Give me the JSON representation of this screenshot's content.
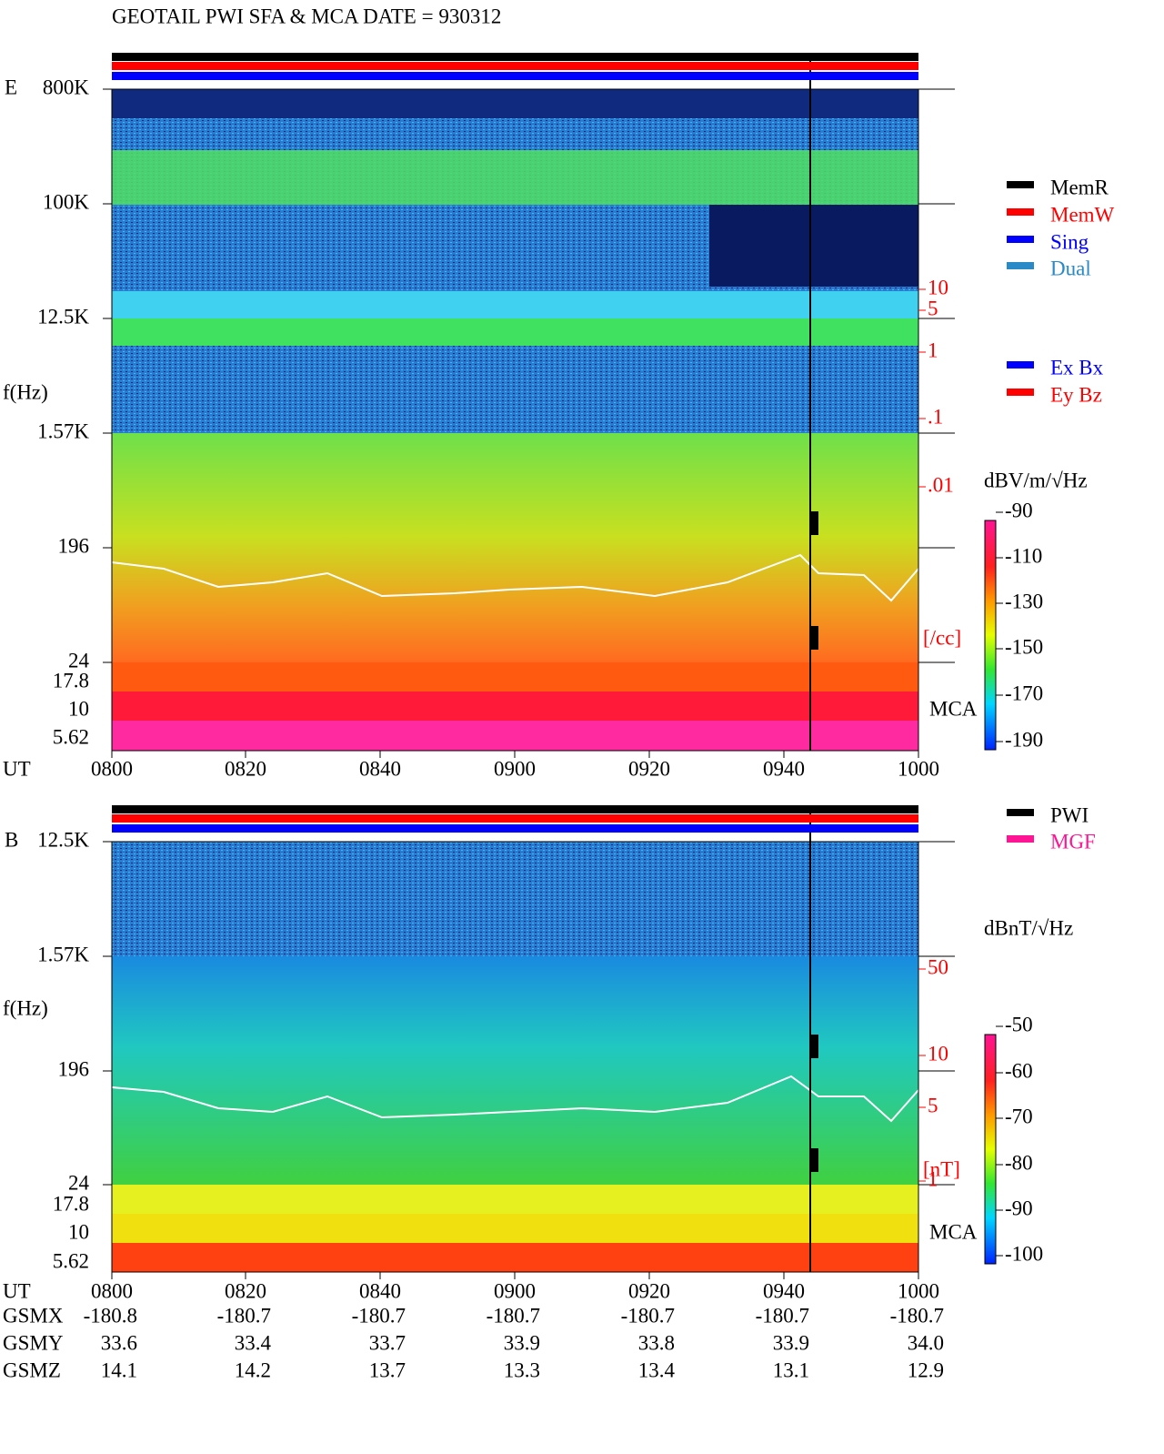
{
  "title": "GEOTAIL  PWI SFA & MCA   DATE = 930312",
  "panels": [
    {
      "label": "E",
      "ylabel": "f(Hz)",
      "yticks": [
        "800K",
        "100K",
        "12.5K",
        "1.57K",
        "196",
        "24",
        "17.8",
        "10",
        "5.62"
      ],
      "right_ticks": [
        "10",
        "5",
        "1",
        ".1",
        ".01"
      ],
      "right_unit": "[/cc]",
      "mca": "MCA",
      "legend": [
        {
          "name": "MemR",
          "color": "#000000"
        },
        {
          "name": "MemW",
          "color": "#ff0000"
        },
        {
          "name": "Sing",
          "color": "#0000ff"
        },
        {
          "name": "Dual",
          "color": "#2a8ac8"
        }
      ],
      "legend2": [
        {
          "name": "Ex Bx",
          "color": "#0000ff"
        },
        {
          "name": "Ey Bz",
          "color": "#ff0000"
        }
      ],
      "colorbar": {
        "unit": "dBV/m/√Hz",
        "ticks": [
          "-90",
          "-110",
          "-130",
          "-150",
          "-170",
          "-190"
        ]
      }
    },
    {
      "label": "B",
      "ylabel": "f(Hz)",
      "yticks": [
        "12.5K",
        "1.57K",
        "196",
        "24",
        "17.8",
        "10",
        "5.62"
      ],
      "right_ticks": [
        "50",
        "10",
        "5",
        "1"
      ],
      "right_unit": "[nT]",
      "mca": "MCA",
      "legend": [
        {
          "name": "PWI",
          "color": "#000000"
        },
        {
          "name": "MGF",
          "color": "#ff1493"
        }
      ],
      "colorbar": {
        "unit": "dBnT/√Hz",
        "ticks": [
          "-50",
          "-60",
          "-70",
          "-80",
          "-90",
          "-100"
        ]
      }
    }
  ],
  "ut_label": "UT",
  "ut_ticks": [
    "0800",
    "0820",
    "0840",
    "0900",
    "0920",
    "0940",
    "1000"
  ],
  "orbit": [
    {
      "name": "GSMX",
      "values": [
        "-180.8",
        "-180.7",
        "-180.7",
        "-180.7",
        "-180.7",
        "-180.7",
        "-180.7"
      ]
    },
    {
      "name": "GSMY",
      "values": [
        "33.6",
        "33.4",
        "33.7",
        "33.9",
        "33.8",
        "33.9",
        "34.0"
      ]
    },
    {
      "name": "GSMZ",
      "values": [
        "14.1",
        "14.2",
        "13.7",
        "13.3",
        "13.4",
        "13.1",
        "12.9"
      ]
    }
  ]
}
